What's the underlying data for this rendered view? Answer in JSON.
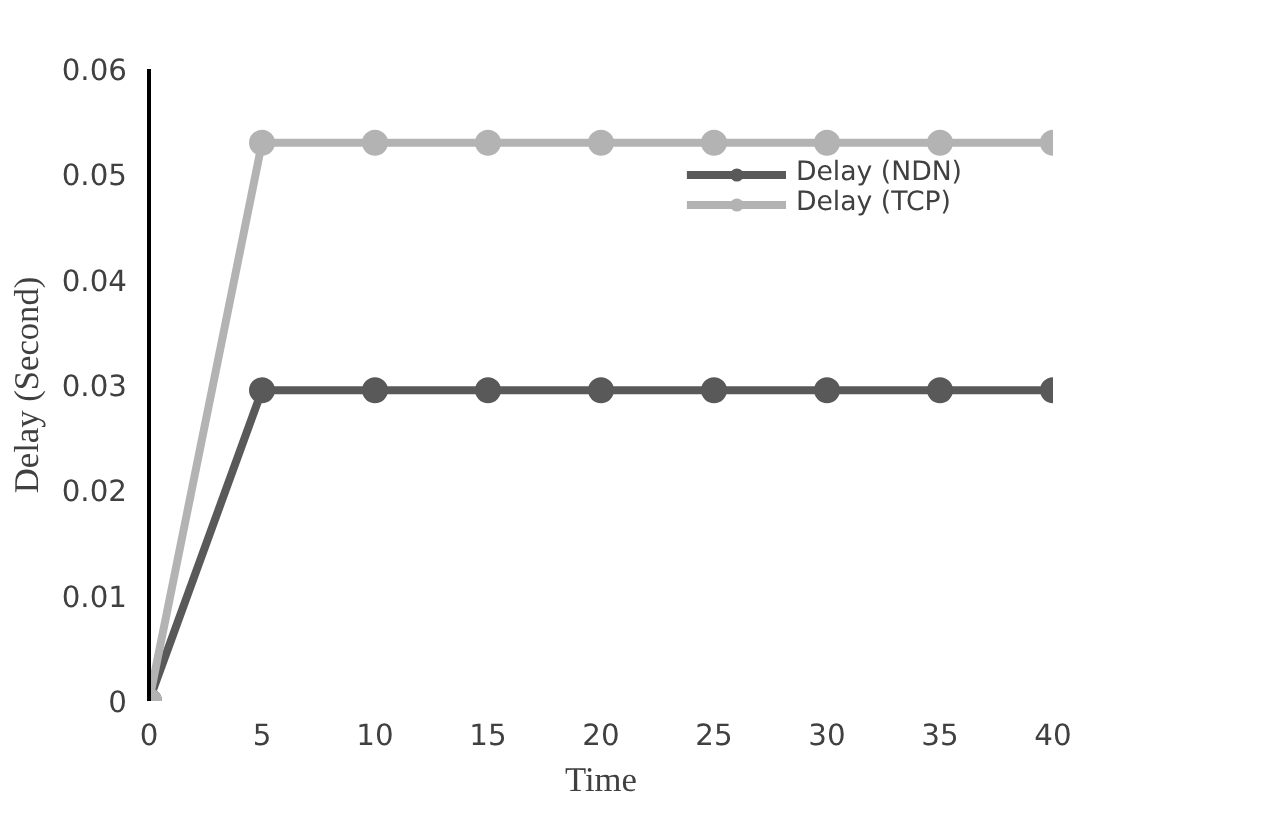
{
  "chart_data": {
    "type": "line",
    "xlabel": "Time",
    "ylabel": "Delay (Second)",
    "x": [
      0,
      5,
      10,
      15,
      20,
      25,
      30,
      35,
      40
    ],
    "series": [
      {
        "name": "Delay (NDN)",
        "color": "#595959",
        "values": [
          0,
          0.0295,
          0.0295,
          0.0295,
          0.0295,
          0.0295,
          0.0295,
          0.0295,
          0.0295
        ]
      },
      {
        "name": "Delay (TCP)",
        "color": "#b3b3b3",
        "values": [
          0,
          0.053,
          0.053,
          0.053,
          0.053,
          0.053,
          0.053,
          0.053,
          0.053
        ]
      }
    ],
    "xlim": [
      0,
      40
    ],
    "xticks": [
      0,
      5,
      10,
      15,
      20,
      25,
      30,
      35,
      40
    ],
    "ylim": [
      0,
      0.06
    ],
    "yticks": [
      {
        "value": 0,
        "label": "0"
      },
      {
        "value": 0.01,
        "label": "0.01"
      },
      {
        "value": 0.02,
        "label": "0.02"
      },
      {
        "value": 0.03,
        "label": "0.03"
      },
      {
        "value": 0.04,
        "label": "0.04"
      },
      {
        "value": 0.05,
        "label": "0.05"
      },
      {
        "value": 0.06,
        "label": "0.06"
      }
    ],
    "grid": false,
    "legend": "top right",
    "marker": "circle",
    "line_style": "solid"
  }
}
